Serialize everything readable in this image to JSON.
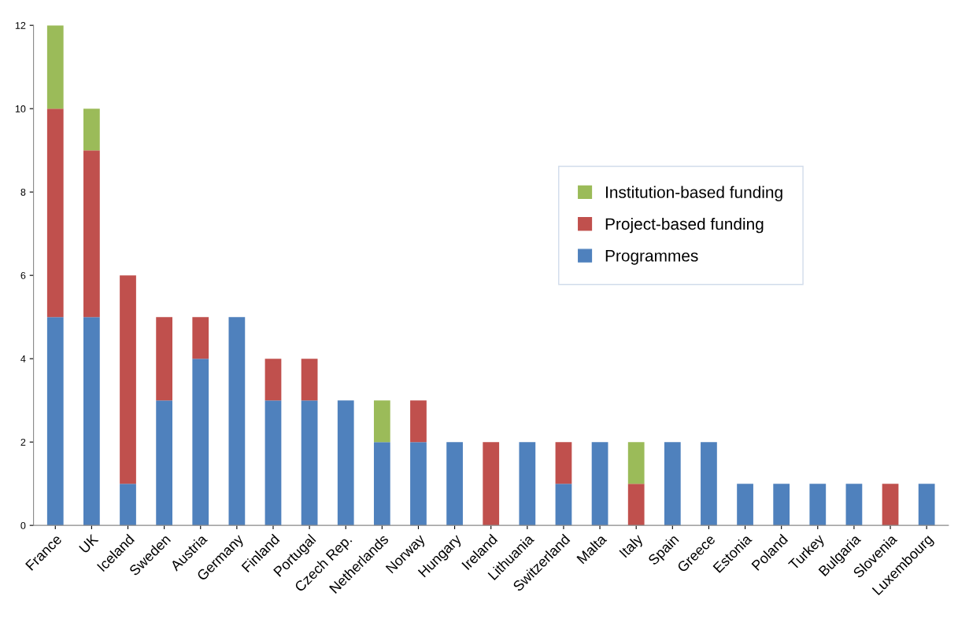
{
  "chart_data": {
    "type": "bar",
    "stacked": true,
    "categories": [
      "France",
      "UK",
      "Iceland",
      "Sweden",
      "Austria",
      "Germany",
      "Finland",
      "Portugal",
      "Czech Rep.",
      "Netherlands",
      "Norway",
      "Hungary",
      "Ireland",
      "Lithuania",
      "Switzerland",
      "Malta",
      "Italy",
      "Spain",
      "Greece",
      "Estonia",
      "Poland",
      "Turkey",
      "Bulgaria",
      "Slovenia",
      "Luxembourg"
    ],
    "series": [
      {
        "name": "Programmes",
        "color": "#4f81bd",
        "values": [
          5,
          5,
          1,
          3,
          4,
          5,
          3,
          3,
          3,
          2,
          2,
          2,
          0,
          2,
          1,
          2,
          0,
          2,
          2,
          1,
          1,
          1,
          1,
          0,
          1
        ]
      },
      {
        "name": "Project-based funding",
        "color": "#c0504d",
        "values": [
          5,
          4,
          5,
          2,
          1,
          0,
          1,
          1,
          0,
          0,
          1,
          0,
          2,
          0,
          1,
          0,
          1,
          0,
          0,
          0,
          0,
          0,
          0,
          1,
          0
        ]
      },
      {
        "name": "Institution-based funding",
        "color": "#9bbb59",
        "values": [
          2,
          1,
          0,
          0,
          0,
          0,
          0,
          0,
          0,
          1,
          0,
          0,
          0,
          0,
          0,
          0,
          1,
          0,
          0,
          0,
          0,
          0,
          0,
          0,
          0
        ]
      }
    ],
    "ylim": [
      0,
      12
    ],
    "yticks": [
      0,
      2,
      4,
      6,
      8,
      10,
      12
    ],
    "grid": false,
    "legend": "right"
  }
}
